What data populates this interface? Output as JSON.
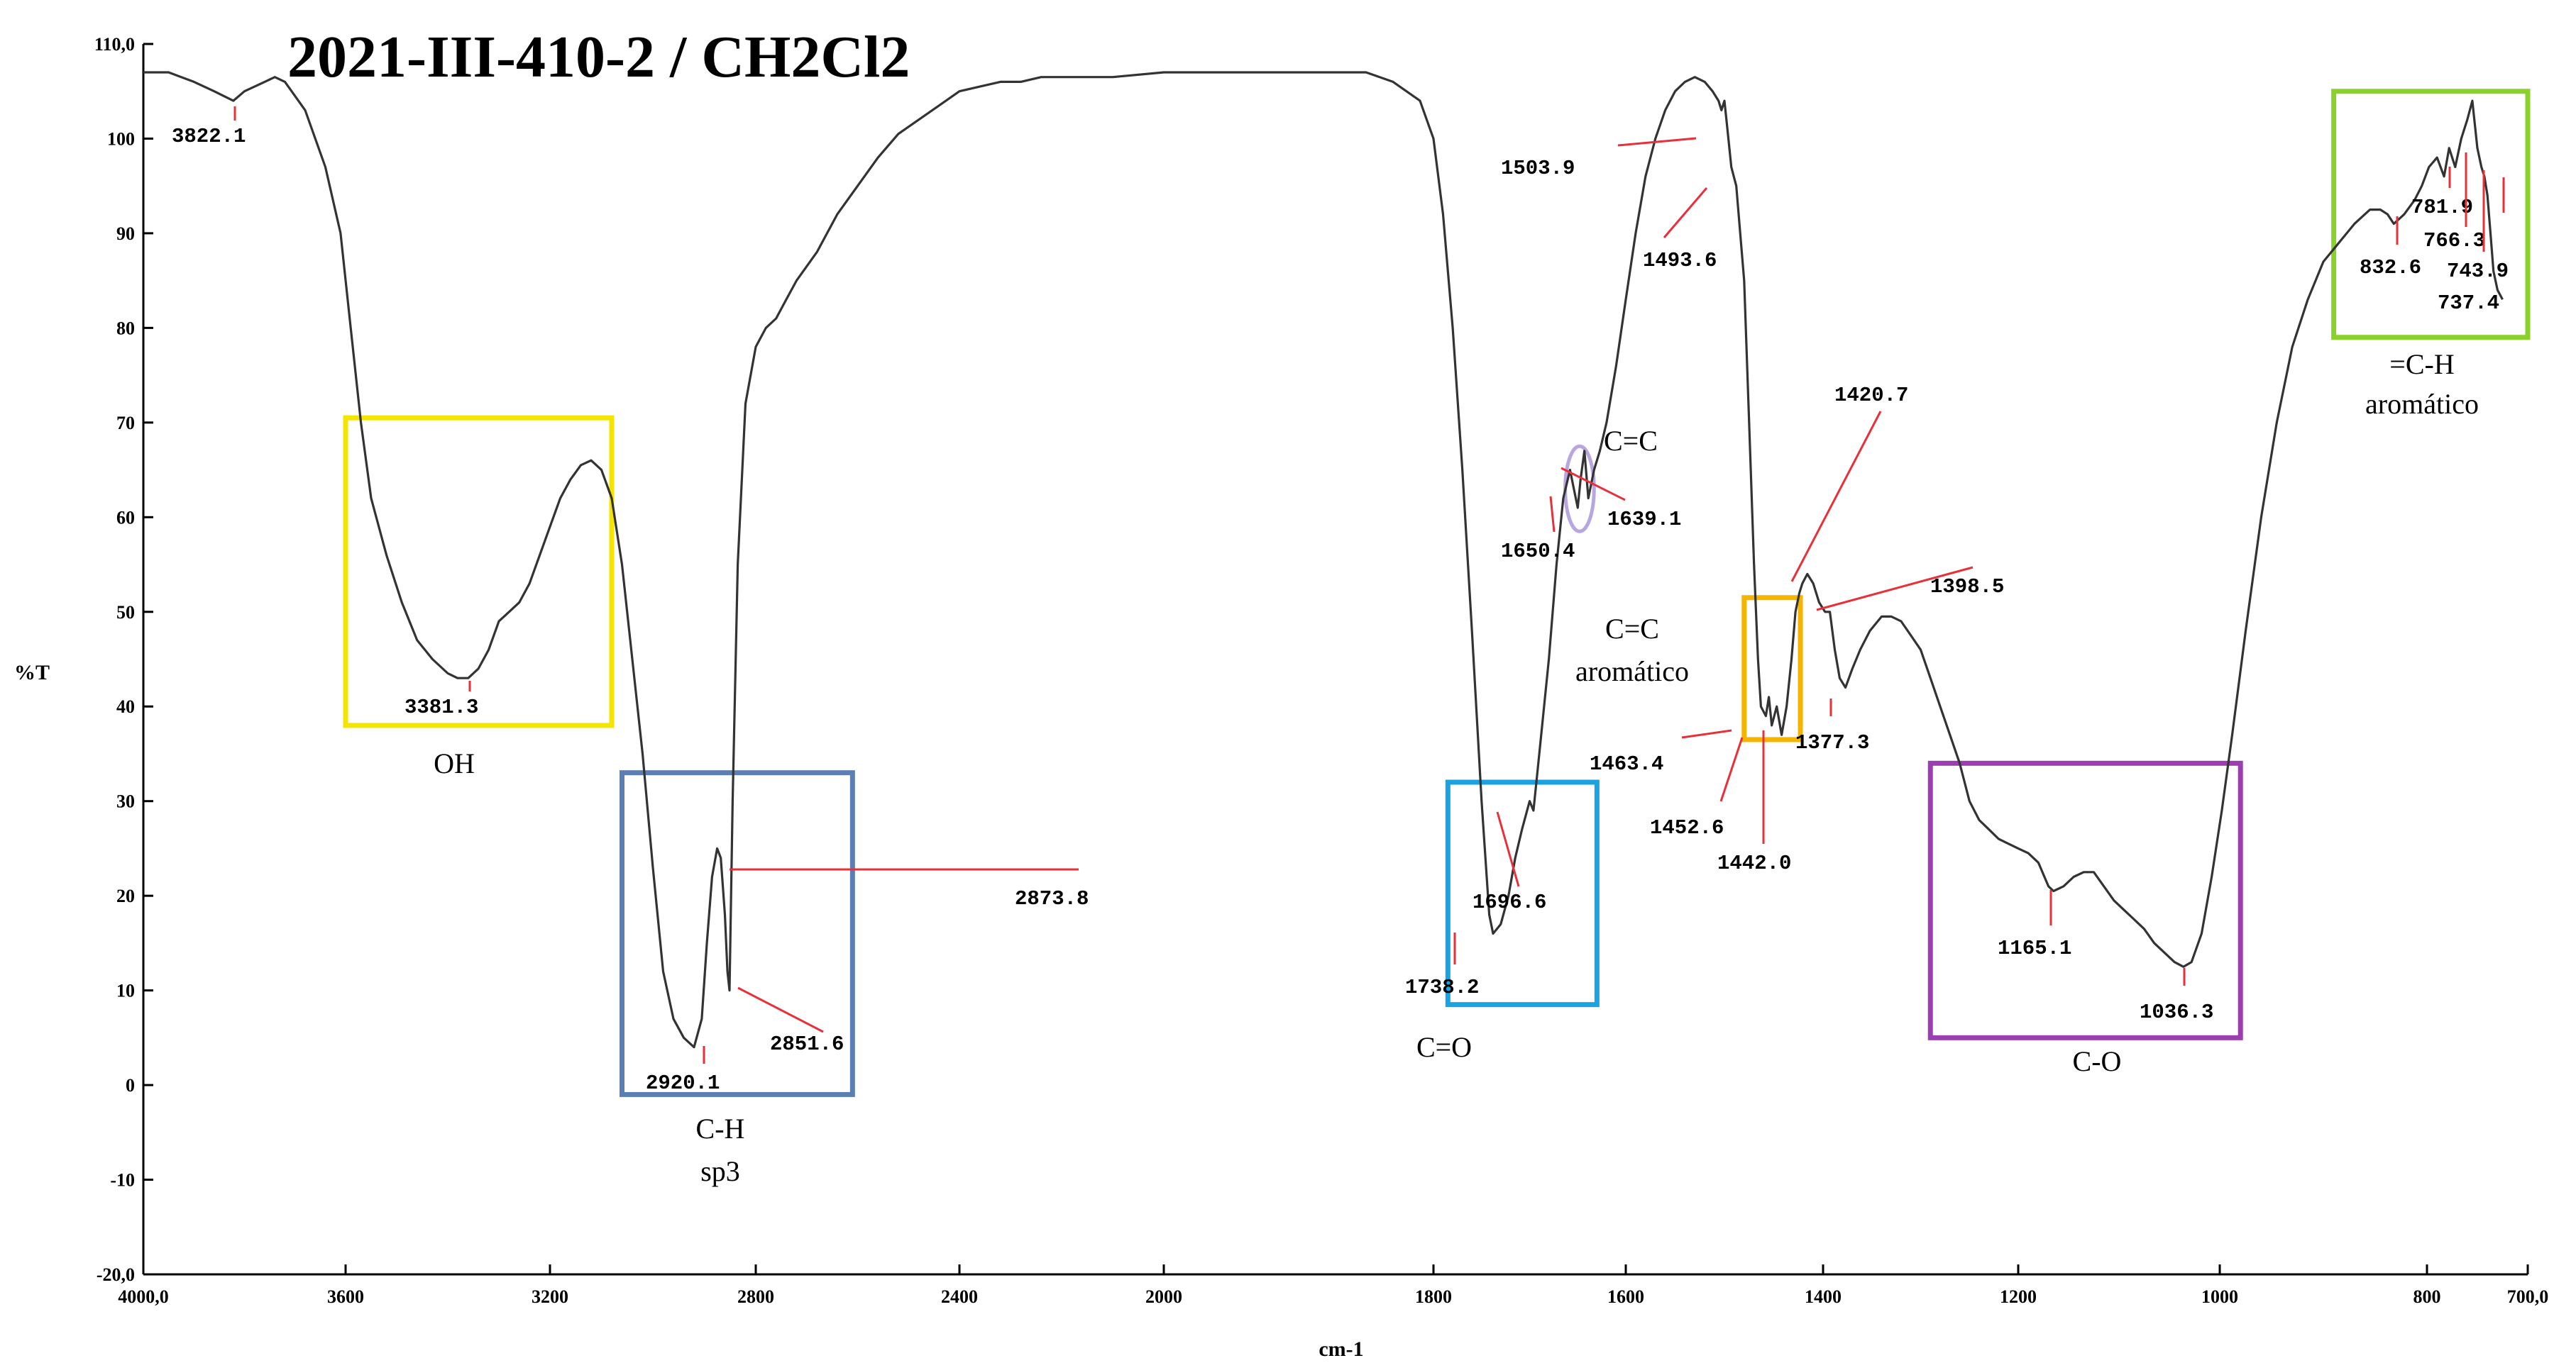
{
  "chart_data": {
    "type": "line",
    "title": "2021-III-410-2 / CH2Cl2",
    "xlabel": "cm-1",
    "ylabel": "%T",
    "xlim": [
      4000,
      700
    ],
    "ylim": [
      -20,
      110
    ],
    "x_reversed": true,
    "grid": false,
    "legend": "none",
    "line_color": "#333333",
    "x_ticks": [
      {
        "value": 4000,
        "label": "4000,0"
      },
      {
        "value": 3600,
        "label": "3600"
      },
      {
        "value": 3200,
        "label": "3200"
      },
      {
        "value": 2800,
        "label": "2800"
      },
      {
        "value": 2400,
        "label": "2400"
      },
      {
        "value": 2000,
        "label": "2000"
      },
      {
        "value": 1800,
        "label": "1800"
      },
      {
        "value": 1600,
        "label": "1600"
      },
      {
        "value": 1400,
        "label": "1400"
      },
      {
        "value": 1200,
        "label": "1200"
      },
      {
        "value": 1000,
        "label": "1000"
      },
      {
        "value": 800,
        "label": "800"
      },
      {
        "value": 700,
        "label": "700,0"
      }
    ],
    "y_ticks": [
      {
        "value": 110,
        "label": "110,0"
      },
      {
        "value": 100,
        "label": "100"
      },
      {
        "value": 90,
        "label": "90"
      },
      {
        "value": 80,
        "label": "80"
      },
      {
        "value": 70,
        "label": "70"
      },
      {
        "value": 60,
        "label": "60"
      },
      {
        "value": 50,
        "label": "50"
      },
      {
        "value": 40,
        "label": "40"
      },
      {
        "value": 30,
        "label": "30"
      },
      {
        "value": 20,
        "label": "20"
      },
      {
        "value": 10,
        "label": "10"
      },
      {
        "value": 0,
        "label": "0"
      },
      {
        "value": -10,
        "label": "-10"
      },
      {
        "value": -20,
        "label": "-20,0"
      }
    ],
    "series": [
      {
        "points": [
          [
            4000,
            107
          ],
          [
            3950,
            107
          ],
          [
            3900,
            106
          ],
          [
            3860,
            105
          ],
          [
            3822,
            104
          ],
          [
            3800,
            105
          ],
          [
            3760,
            106
          ],
          [
            3740,
            106.5
          ],
          [
            3720,
            106
          ],
          [
            3680,
            103
          ],
          [
            3640,
            97
          ],
          [
            3610,
            90
          ],
          [
            3590,
            80
          ],
          [
            3570,
            70
          ],
          [
            3550,
            62
          ],
          [
            3520,
            56
          ],
          [
            3490,
            51
          ],
          [
            3460,
            47
          ],
          [
            3430,
            45
          ],
          [
            3400,
            43.5
          ],
          [
            3381,
            43
          ],
          [
            3360,
            43
          ],
          [
            3340,
            44
          ],
          [
            3320,
            46
          ],
          [
            3300,
            49
          ],
          [
            3280,
            50
          ],
          [
            3260,
            51
          ],
          [
            3240,
            53
          ],
          [
            3220,
            56
          ],
          [
            3200,
            59
          ],
          [
            3180,
            62
          ],
          [
            3160,
            64
          ],
          [
            3140,
            65.5
          ],
          [
            3120,
            66
          ],
          [
            3100,
            65
          ],
          [
            3080,
            62
          ],
          [
            3060,
            55
          ],
          [
            3040,
            45
          ],
          [
            3020,
            35
          ],
          [
            3000,
            23
          ],
          [
            2980,
            12
          ],
          [
            2960,
            7
          ],
          [
            2940,
            5
          ],
          [
            2920,
            4
          ],
          [
            2905,
            7
          ],
          [
            2895,
            15
          ],
          [
            2885,
            22
          ],
          [
            2875,
            25
          ],
          [
            2868,
            24
          ],
          [
            2860,
            18
          ],
          [
            2855,
            12
          ],
          [
            2851,
            10
          ],
          [
            2845,
            30
          ],
          [
            2835,
            55
          ],
          [
            2820,
            72
          ],
          [
            2800,
            78
          ],
          [
            2780,
            80
          ],
          [
            2760,
            81
          ],
          [
            2740,
            83
          ],
          [
            2720,
            85
          ],
          [
            2680,
            88
          ],
          [
            2640,
            92
          ],
          [
            2600,
            95
          ],
          [
            2560,
            98
          ],
          [
            2520,
            100.5
          ],
          [
            2480,
            102
          ],
          [
            2440,
            103.5
          ],
          [
            2400,
            105
          ],
          [
            2360,
            105.5
          ],
          [
            2320,
            106
          ],
          [
            2280,
            106
          ],
          [
            2240,
            106.5
          ],
          [
            2200,
            106.5
          ],
          [
            2100,
            106.5
          ],
          [
            2000,
            107
          ],
          [
            1900,
            107
          ],
          [
            1850,
            107
          ],
          [
            1830,
            106
          ],
          [
            1810,
            104
          ],
          [
            1800,
            100
          ],
          [
            1790,
            92
          ],
          [
            1780,
            80
          ],
          [
            1770,
            65
          ],
          [
            1760,
            48
          ],
          [
            1750,
            30
          ],
          [
            1742,
            18
          ],
          [
            1738,
            16
          ],
          [
            1730,
            17
          ],
          [
            1722,
            20
          ],
          [
            1715,
            24
          ],
          [
            1708,
            27
          ],
          [
            1700,
            30
          ],
          [
            1696,
            29
          ],
          [
            1690,
            35
          ],
          [
            1680,
            45
          ],
          [
            1672,
            55
          ],
          [
            1665,
            62
          ],
          [
            1658,
            65
          ],
          [
            1654,
            63
          ],
          [
            1650,
            61
          ],
          [
            1647,
            64
          ],
          [
            1643,
            67
          ],
          [
            1639,
            62
          ],
          [
            1633,
            65
          ],
          [
            1627,
            67
          ],
          [
            1620,
            70
          ],
          [
            1610,
            76
          ],
          [
            1600,
            83
          ],
          [
            1590,
            90
          ],
          [
            1580,
            96
          ],
          [
            1570,
            100
          ],
          [
            1560,
            103
          ],
          [
            1550,
            105
          ],
          [
            1540,
            106
          ],
          [
            1530,
            106.5
          ],
          [
            1520,
            106
          ],
          [
            1512,
            105
          ],
          [
            1506,
            104
          ],
          [
            1503,
            103
          ],
          [
            1500,
            104
          ],
          [
            1497,
            101
          ],
          [
            1493,
            97
          ],
          [
            1488,
            95
          ],
          [
            1480,
            85
          ],
          [
            1475,
            70
          ],
          [
            1470,
            55
          ],
          [
            1466,
            45
          ],
          [
            1463,
            40
          ],
          [
            1458,
            39
          ],
          [
            1455,
            41
          ],
          [
            1452,
            38
          ],
          [
            1447,
            40
          ],
          [
            1442,
            37
          ],
          [
            1437,
            40
          ],
          [
            1432,
            45
          ],
          [
            1428,
            50
          ],
          [
            1424,
            52
          ],
          [
            1421,
            53
          ],
          [
            1416,
            54
          ],
          [
            1410,
            53
          ],
          [
            1404,
            51
          ],
          [
            1398,
            50
          ],
          [
            1393,
            50
          ],
          [
            1388,
            46
          ],
          [
            1383,
            43
          ],
          [
            1377,
            42
          ],
          [
            1370,
            44
          ],
          [
            1362,
            46
          ],
          [
            1352,
            48
          ],
          [
            1340,
            49.5
          ],
          [
            1330,
            49.5
          ],
          [
            1320,
            49
          ],
          [
            1310,
            47.5
          ],
          [
            1300,
            46
          ],
          [
            1290,
            43
          ],
          [
            1280,
            40
          ],
          [
            1270,
            37
          ],
          [
            1260,
            34
          ],
          [
            1250,
            30
          ],
          [
            1240,
            28
          ],
          [
            1230,
            27
          ],
          [
            1220,
            26
          ],
          [
            1210,
            25.5
          ],
          [
            1200,
            25
          ],
          [
            1190,
            24.5
          ],
          [
            1180,
            23.5
          ],
          [
            1170,
            21
          ],
          [
            1165,
            20.5
          ],
          [
            1155,
            21
          ],
          [
            1145,
            22
          ],
          [
            1135,
            22.5
          ],
          [
            1125,
            22.5
          ],
          [
            1115,
            21
          ],
          [
            1105,
            19.5
          ],
          [
            1095,
            18.5
          ],
          [
            1085,
            17.5
          ],
          [
            1075,
            16.5
          ],
          [
            1065,
            15
          ],
          [
            1055,
            14
          ],
          [
            1045,
            13
          ],
          [
            1036,
            12.5
          ],
          [
            1028,
            13
          ],
          [
            1018,
            16
          ],
          [
            1008,
            22
          ],
          [
            998,
            29
          ],
          [
            988,
            37
          ],
          [
            975,
            48
          ],
          [
            960,
            60
          ],
          [
            945,
            70
          ],
          [
            930,
            78
          ],
          [
            915,
            83
          ],
          [
            900,
            87
          ],
          [
            885,
            89
          ],
          [
            870,
            91
          ],
          [
            855,
            92.5
          ],
          [
            845,
            92.5
          ],
          [
            838,
            92
          ],
          [
            832,
            91
          ],
          [
            822,
            92
          ],
          [
            812,
            93.5
          ],
          [
            805,
            95
          ],
          [
            798,
            97
          ],
          [
            790,
            98
          ],
          [
            783,
            96
          ],
          [
            778,
            99
          ],
          [
            772,
            97
          ],
          [
            766,
            100
          ],
          [
            760,
            102
          ],
          [
            755,
            104
          ],
          [
            750,
            99
          ],
          [
            746,
            97
          ],
          [
            743,
            96
          ],
          [
            740,
            94
          ],
          [
            737,
            90
          ],
          [
            734,
            86
          ],
          [
            730,
            84
          ],
          [
            725,
            83
          ]
        ]
      }
    ],
    "annotations": [
      {
        "label": "3822.1",
        "x": 3822,
        "y": 104
      },
      {
        "label": "3381.3",
        "x": 3381,
        "y": 43
      },
      {
        "label": "2920.1",
        "x": 2920,
        "y": 4
      },
      {
        "label": "2851.6",
        "x": 2851,
        "y": 10
      },
      {
        "label": "2873.8",
        "x": 2873,
        "y": 25
      },
      {
        "label": "1738.2",
        "x": 1738,
        "y": 16
      },
      {
        "label": "1696.6",
        "x": 1696,
        "y": 29
      },
      {
        "label": "1650.4",
        "x": 1650,
        "y": 61
      },
      {
        "label": "1639.1",
        "x": 1639,
        "y": 62
      },
      {
        "label": "1503.9",
        "x": 1503,
        "y": 103
      },
      {
        "label": "1493.6",
        "x": 1493,
        "y": 97
      },
      {
        "label": "1463.4",
        "x": 1463,
        "y": 40
      },
      {
        "label": "1452.6",
        "x": 1452,
        "y": 38
      },
      {
        "label": "1442.0",
        "x": 1442,
        "y": 37
      },
      {
        "label": "1420.7",
        "x": 1421,
        "y": 53
      },
      {
        "label": "1398.5",
        "x": 1398,
        "y": 50
      },
      {
        "label": "1377.3",
        "x": 1377,
        "y": 42
      },
      {
        "label": "1165.1",
        "x": 1165,
        "y": 20.5
      },
      {
        "label": "1036.3",
        "x": 1036,
        "y": 12.5
      },
      {
        "label": "832.6",
        "x": 832,
        "y": 91
      },
      {
        "label": "781.9",
        "x": 781,
        "y": 98
      },
      {
        "label": "766.3",
        "x": 766,
        "y": 100
      },
      {
        "label": "743.9",
        "x": 743,
        "y": 96
      },
      {
        "label": "737.4",
        "x": 737,
        "y": 90
      }
    ],
    "groups": [
      {
        "lines": [
          "OH"
        ],
        "color": "#f5e400",
        "x_from": 3600,
        "x_to": 3080,
        "y_from": 38,
        "y_to": 70.5
      },
      {
        "lines": [
          "C-H",
          "sp3"
        ],
        "color": "#5b7fb3",
        "x_from": 3060,
        "x_to": 2610,
        "y_from": -1,
        "y_to": 33
      },
      {
        "lines": [
          "C=O"
        ],
        "color": "#1aa3e0",
        "x_from": 1785,
        "x_to": 1630,
        "y_from": 8.5,
        "y_to": 32
      },
      {
        "lines": [
          "C=C",
          "aromático"
        ],
        "color": "#f4b400",
        "x_from": 1480,
        "x_to": 1423,
        "y_from": 36.5,
        "y_to": 51.5
      },
      {
        "lines": [
          "C-O"
        ],
        "color": "#9b3fb0",
        "x_from": 1290,
        "x_to": 980,
        "y_from": 5,
        "y_to": 34
      },
      {
        "lines": [
          "=C-H",
          "aromático"
        ],
        "color": "#8bd12b",
        "x_from": 890,
        "x_to": 700,
        "y_from": 79,
        "y_to": 105
      },
      {
        "lines": [
          "C=C"
        ],
        "color": "#b8a6e0",
        "shape": "ellipse",
        "x_from": 1663,
        "x_to": 1633,
        "y_from": 58.5,
        "y_to": 67.5
      }
    ]
  }
}
